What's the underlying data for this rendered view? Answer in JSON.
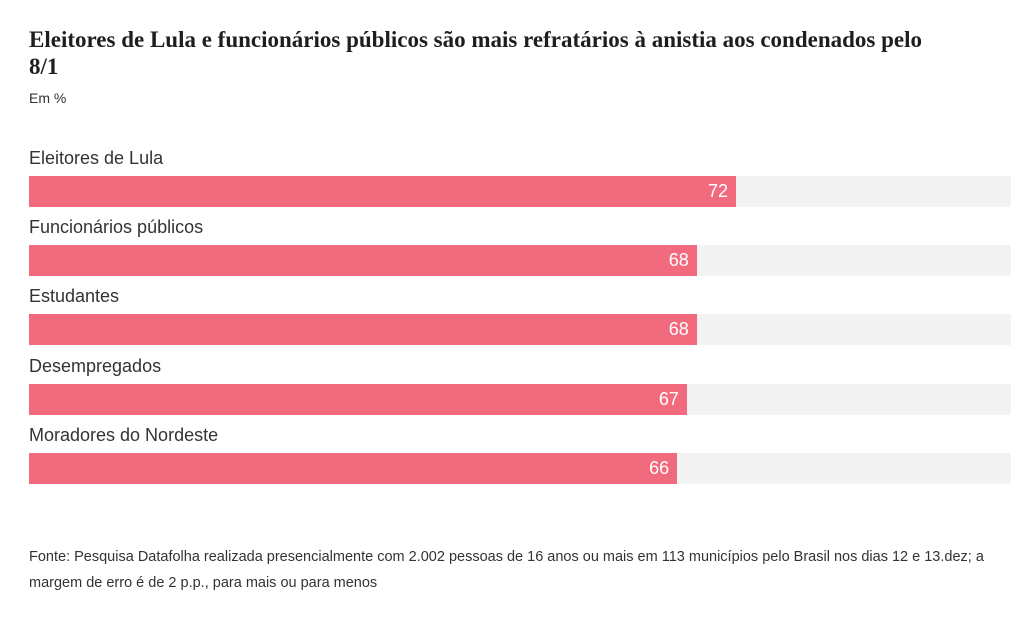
{
  "chart_data": {
    "type": "bar",
    "orientation": "horizontal",
    "title": "Eleitores de Lula e funcionários públicos são mais refratários à anistia aos condenados pelo 8/1",
    "subtitle": "Em %",
    "categories": [
      "Eleitores de Lula",
      "Funcionários públicos",
      "Estudantes",
      "Desempregados",
      "Moradores do Nordeste"
    ],
    "values": [
      72,
      68,
      68,
      67,
      66
    ],
    "xlim": [
      0,
      100
    ],
    "bar_color": "#f26a7e",
    "track_color": "#f3f3f3",
    "grid": false,
    "source": "Fonte: Pesquisa Datafolha realizada presencialmente com 2.002 pessoas de 16 anos ou mais em 113 municípios pelo Brasil nos dias 12 e 13.dez; a margem de erro é de 2 p.p., para mais ou para menos"
  }
}
